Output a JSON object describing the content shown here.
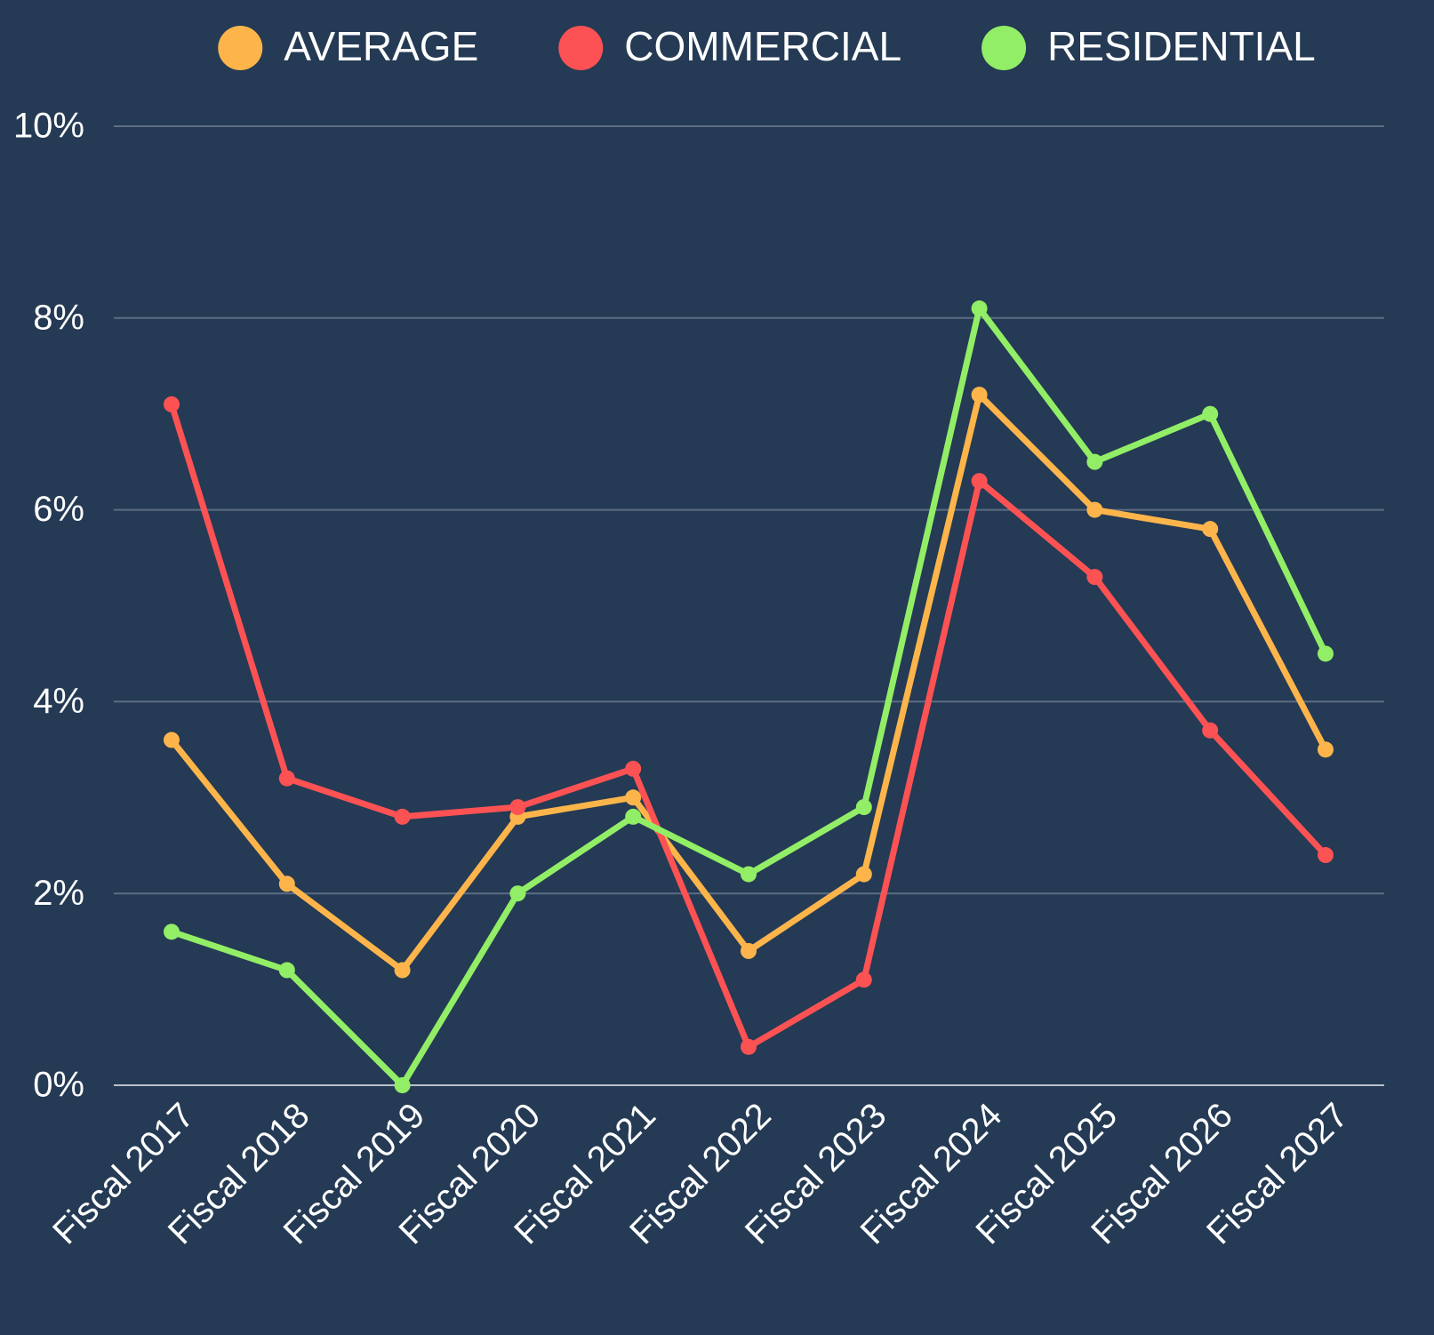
{
  "chart_data": {
    "type": "line",
    "categories": [
      "Fiscal 2017",
      "Fiscal 2018",
      "Fiscal 2019",
      "Fiscal 2020",
      "Fiscal 2021",
      "Fiscal 2022",
      "Fiscal 2023",
      "Fiscal 2024",
      "Fiscal 2025",
      "Fiscal 2026",
      "Fiscal 2027"
    ],
    "series": [
      {
        "name": "AVERAGE",
        "color": "#fdb54b",
        "values": [
          3.6,
          2.1,
          1.2,
          2.8,
          3.0,
          1.4,
          2.2,
          7.2,
          6.0,
          5.8,
          3.5
        ]
      },
      {
        "name": "COMMERCIAL",
        "color": "#fc5254",
        "values": [
          7.1,
          3.2,
          2.8,
          2.9,
          3.3,
          0.4,
          1.1,
          6.3,
          5.3,
          3.7,
          2.4
        ]
      },
      {
        "name": "RESIDENTIAL",
        "color": "#92ee66",
        "values": [
          1.6,
          1.2,
          0.0,
          2.0,
          2.8,
          2.2,
          2.9,
          8.1,
          6.5,
          7.0,
          4.5
        ]
      }
    ],
    "ylim": [
      0,
      10
    ],
    "yticks": [
      {
        "value": 0,
        "label": "0%"
      },
      {
        "value": 2,
        "label": "2%"
      },
      {
        "value": 4,
        "label": "4%"
      },
      {
        "value": 6,
        "label": "6%"
      },
      {
        "value": 8,
        "label": "8%"
      },
      {
        "value": 10,
        "label": "10%"
      }
    ],
    "grid": true,
    "legend": "top"
  }
}
